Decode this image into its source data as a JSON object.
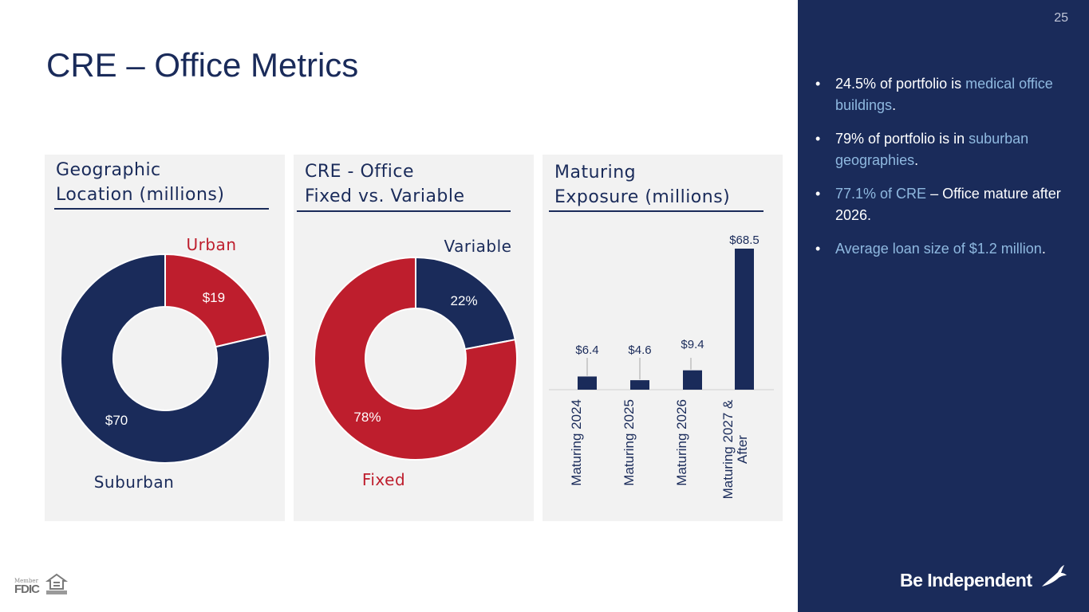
{
  "slide": {
    "title": "CRE – Office Metrics",
    "page_number": "25"
  },
  "panels": [
    {
      "title_line1": "Geographic",
      "title_line2": "Location (millions)"
    },
    {
      "title_line1": "CRE - Office",
      "title_line2": "Fixed vs. Variable"
    },
    {
      "title_line1": "Maturing",
      "title_line2": "Exposure (millions)"
    }
  ],
  "chart_data": [
    {
      "type": "pie",
      "subtype": "donut",
      "title": "Geographic Location (millions)",
      "categories": [
        "Urban",
        "Suburban"
      ],
      "values": [
        19,
        70
      ],
      "value_labels": [
        "$19",
        "$70"
      ],
      "colors": [
        "#be1e2d",
        "#1a2b5a"
      ],
      "category_label_colors": [
        "#be1e2d",
        "#1a2b5a"
      ]
    },
    {
      "type": "pie",
      "subtype": "donut",
      "title": "CRE - Office Fixed vs. Variable",
      "categories": [
        "Variable",
        "Fixed"
      ],
      "values": [
        22,
        78
      ],
      "value_labels": [
        "22%",
        "78%"
      ],
      "colors": [
        "#1a2b5a",
        "#be1e2d"
      ],
      "category_label_colors": [
        "#1a2b5a",
        "#be1e2d"
      ]
    },
    {
      "type": "bar",
      "title": "Maturing Exposure (millions)",
      "categories": [
        "Maturing 2024",
        "Maturing 2025",
        "Maturing 2026",
        "Maturing 2027 & After"
      ],
      "category_lines": [
        [
          "Maturing 2024"
        ],
        [
          "Maturing 2025"
        ],
        [
          "Maturing 2026"
        ],
        [
          "Maturing 2027 &",
          "After"
        ]
      ],
      "values": [
        6.4,
        4.6,
        9.4,
        68.5
      ],
      "value_labels": [
        "$6.4",
        "$4.6",
        "$9.4",
        "$68.5"
      ],
      "ylim": [
        0,
        68.5
      ],
      "color": "#1a2b5a",
      "xlabel": "",
      "ylabel": ""
    }
  ],
  "sidebar": {
    "bullets": [
      [
        {
          "text": "24.5% of portfolio is ",
          "hl": false
        },
        {
          "text": "medical office buildings",
          "hl": true
        },
        {
          "text": ".",
          "hl": false
        }
      ],
      [
        {
          "text": "79% of portfolio is in ",
          "hl": false
        },
        {
          "text": "suburban geographies",
          "hl": true
        },
        {
          "text": ".",
          "hl": false
        }
      ],
      [
        {
          "text": "77.1% of CRE",
          "hl": true
        },
        {
          "text": " – Office mature after 2026.",
          "hl": false
        }
      ],
      [
        {
          "text": "Average loan size of $1.2 million",
          "hl": true
        },
        {
          "text": ".",
          "hl": false
        }
      ]
    ],
    "brand": "Be Independent"
  },
  "footer": {
    "member_text": "Member",
    "fdic_text": "FDIC"
  },
  "colors": {
    "navy": "#1a2b5a",
    "red": "#be1e2d",
    "panel_bg": "#f2f2f2",
    "highlight": "#8fb9e0"
  }
}
